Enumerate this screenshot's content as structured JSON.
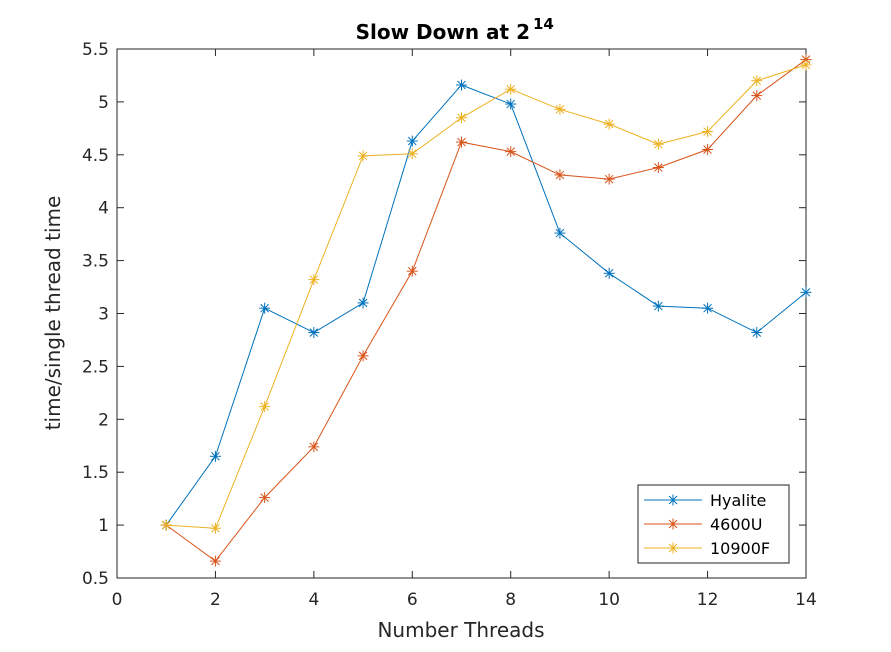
{
  "chart_data": {
    "type": "line",
    "title": "Slow Down at 2",
    "title_superscript": "14",
    "xlabel": "Number Threads",
    "ylabel": "time/single thread time",
    "xlim": [
      0,
      14
    ],
    "ylim": [
      0.5,
      5.5
    ],
    "xticks": [
      0,
      2,
      4,
      6,
      8,
      10,
      12,
      14
    ],
    "xtick_labels": [
      "0",
      "2",
      "4",
      "6",
      "8",
      "10",
      "12",
      "14"
    ],
    "yticks": [
      0.5,
      1,
      1.5,
      2,
      2.5,
      3,
      3.5,
      4,
      4.5,
      5,
      5.5
    ],
    "ytick_labels": [
      "0.5",
      "1",
      "1.5",
      "2",
      "2.5",
      "3",
      "3.5",
      "4",
      "4.5",
      "5",
      "5.5"
    ],
    "grid": false,
    "legend_position": "bottom-right",
    "marker": "asterisk",
    "x": [
      1,
      2,
      3,
      4,
      5,
      6,
      7,
      8,
      9,
      10,
      11,
      12,
      13,
      14
    ],
    "series": [
      {
        "name": "Hyalite",
        "color": "#0072BD",
        "values": [
          1.0,
          1.65,
          3.05,
          2.82,
          3.1,
          4.63,
          5.16,
          4.98,
          3.76,
          3.38,
          3.07,
          3.05,
          2.82,
          3.2
        ]
      },
      {
        "name": "4600U",
        "color": "#D95319",
        "values": [
          1.0,
          0.66,
          1.26,
          1.74,
          2.6,
          3.4,
          4.62,
          4.53,
          4.31,
          4.27,
          4.38,
          4.55,
          5.06,
          5.4
        ]
      },
      {
        "name": "10900F",
        "color": "#EDB120",
        "values": [
          1.0,
          0.97,
          2.12,
          3.32,
          4.49,
          4.51,
          4.85,
          5.12,
          4.93,
          4.79,
          4.6,
          4.72,
          5.2,
          5.35
        ]
      }
    ]
  }
}
